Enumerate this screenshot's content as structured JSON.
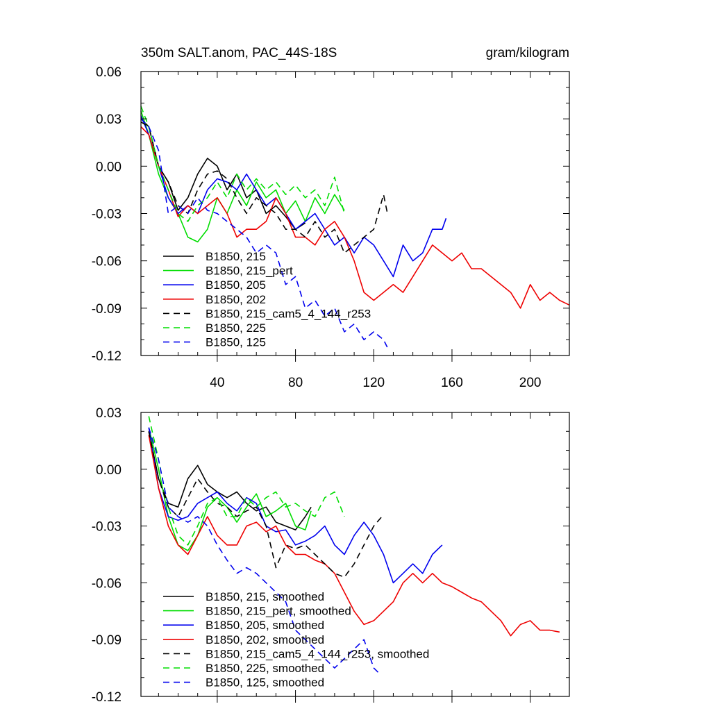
{
  "chart_data": [
    {
      "type": "line",
      "title": "350m SALT.anom, PAC_44S-18S",
      "units": "gram/kilogram",
      "xlabel": "",
      "ylabel": "",
      "xlim": [
        1,
        220
      ],
      "ylim": [
        -0.12,
        0.06
      ],
      "xticks": [
        40,
        80,
        120,
        160,
        200
      ],
      "xtick_labels": [
        "40",
        "80",
        "120",
        "160",
        "200"
      ],
      "yticks": [
        0.06,
        0.03,
        0.0,
        -0.03,
        -0.06,
        -0.09,
        -0.12
      ],
      "ytick_labels": [
        "0.06",
        "0.03",
        "0.00",
        "-0.03",
        "-0.06",
        "-0.09",
        "-0.12"
      ],
      "legend_position": "lower-left",
      "series": [
        {
          "name": "B1850, 215",
          "color": "#000000",
          "dash": "solid",
          "x": [
            1,
            5,
            10,
            15,
            20,
            25,
            30,
            35,
            40,
            45,
            50,
            55,
            60,
            65,
            70,
            75,
            80,
            85
          ],
          "y": [
            0.03,
            0.025,
            0.0,
            -0.01,
            -0.028,
            -0.02,
            -0.005,
            0.005,
            0.0,
            -0.015,
            -0.005,
            -0.02,
            -0.015,
            -0.03,
            -0.025,
            -0.032,
            -0.04,
            -0.036
          ]
        },
        {
          "name": "B1850, 215_pert",
          "color": "#00dd00",
          "dash": "solid",
          "x": [
            1,
            5,
            10,
            15,
            20,
            25,
            30,
            35,
            40,
            45,
            50,
            55,
            60,
            65,
            70,
            75,
            80,
            85,
            90,
            95,
            100,
            105
          ],
          "y": [
            0.035,
            0.02,
            -0.005,
            -0.02,
            -0.03,
            -0.045,
            -0.048,
            -0.04,
            -0.02,
            -0.03,
            -0.015,
            -0.025,
            -0.01,
            -0.02,
            -0.015,
            -0.03,
            -0.022,
            -0.035,
            -0.02,
            -0.03,
            -0.018,
            -0.028
          ]
        },
        {
          "name": "B1850, 205",
          "color": "#0000ee",
          "dash": "solid",
          "x": [
            1,
            5,
            10,
            15,
            20,
            25,
            30,
            35,
            40,
            45,
            50,
            55,
            60,
            65,
            70,
            75,
            80,
            85,
            90,
            95,
            100,
            105,
            110,
            115,
            120,
            125,
            130,
            135,
            140,
            145,
            150,
            155,
            157
          ],
          "y": [
            0.032,
            0.02,
            0.0,
            -0.02,
            -0.03,
            -0.025,
            -0.03,
            -0.015,
            -0.008,
            -0.01,
            -0.015,
            -0.005,
            -0.015,
            -0.025,
            -0.02,
            -0.03,
            -0.04,
            -0.035,
            -0.03,
            -0.04,
            -0.05,
            -0.045,
            -0.055,
            -0.045,
            -0.05,
            -0.06,
            -0.07,
            -0.05,
            -0.06,
            -0.055,
            -0.04,
            -0.04,
            -0.033
          ]
        },
        {
          "name": "B1850, 202",
          "color": "#ee0000",
          "dash": "solid",
          "x": [
            1,
            5,
            10,
            15,
            20,
            25,
            30,
            35,
            40,
            45,
            50,
            55,
            60,
            65,
            70,
            75,
            80,
            85,
            90,
            95,
            100,
            105,
            110,
            115,
            120,
            125,
            130,
            135,
            140,
            145,
            150,
            155,
            160,
            165,
            170,
            175,
            180,
            185,
            190,
            195,
            200,
            205,
            210,
            215,
            220
          ],
          "y": [
            0.025,
            0.02,
            0.0,
            -0.015,
            -0.032,
            -0.025,
            -0.03,
            -0.025,
            -0.02,
            -0.03,
            -0.045,
            -0.04,
            -0.04,
            -0.035,
            -0.02,
            -0.03,
            -0.045,
            -0.045,
            -0.05,
            -0.04,
            -0.035,
            -0.045,
            -0.06,
            -0.08,
            -0.085,
            -0.08,
            -0.075,
            -0.08,
            -0.07,
            -0.06,
            -0.05,
            -0.055,
            -0.06,
            -0.055,
            -0.065,
            -0.065,
            -0.07,
            -0.075,
            -0.08,
            -0.09,
            -0.075,
            -0.085,
            -0.08,
            -0.085,
            -0.088
          ]
        },
        {
          "name": "B1850, 215_cam5_4_144_r253",
          "color": "#000000",
          "dash": "dashed",
          "x": [
            1,
            5,
            10,
            15,
            20,
            25,
            30,
            35,
            40,
            45,
            50,
            55,
            60,
            65,
            70,
            75,
            80,
            85,
            90,
            95,
            100,
            105,
            110,
            115,
            120,
            125,
            127
          ],
          "y": [
            0.028,
            0.025,
            0.0,
            -0.01,
            -0.025,
            -0.03,
            -0.015,
            -0.005,
            -0.003,
            -0.008,
            -0.02,
            -0.03,
            -0.02,
            -0.025,
            -0.03,
            -0.04,
            -0.04,
            -0.045,
            -0.035,
            -0.045,
            -0.04,
            -0.055,
            -0.05,
            -0.045,
            -0.04,
            -0.018,
            -0.03
          ]
        },
        {
          "name": "B1850, 225",
          "color": "#00dd00",
          "dash": "dashed",
          "x": [
            1,
            5,
            10,
            15,
            20,
            25,
            30,
            35,
            40,
            45,
            50,
            55,
            60,
            65,
            70,
            75,
            80,
            85,
            90,
            95,
            100,
            105
          ],
          "y": [
            0.038,
            0.025,
            0.0,
            -0.015,
            -0.03,
            -0.035,
            -0.025,
            -0.02,
            -0.01,
            -0.02,
            -0.005,
            -0.015,
            -0.008,
            -0.015,
            -0.01,
            -0.018,
            -0.012,
            -0.02,
            -0.015,
            -0.025,
            -0.007,
            -0.03
          ]
        },
        {
          "name": "B1850, 125",
          "color": "#0000ee",
          "dash": "dashed",
          "x": [
            1,
            5,
            10,
            15,
            20,
            25,
            30,
            35,
            40,
            45,
            50,
            55,
            60,
            65,
            70,
            75,
            80,
            85,
            90,
            95,
            100,
            105,
            110,
            115,
            120,
            125,
            127
          ],
          "y": [
            0.03,
            0.025,
            0.01,
            -0.03,
            -0.025,
            -0.03,
            -0.02,
            -0.028,
            -0.03,
            -0.035,
            -0.04,
            -0.045,
            -0.055,
            -0.05,
            -0.055,
            -0.075,
            -0.07,
            -0.09,
            -0.085,
            -0.095,
            -0.09,
            -0.105,
            -0.1,
            -0.11,
            -0.105,
            -0.11,
            -0.115
          ]
        }
      ]
    },
    {
      "type": "line",
      "title": "",
      "xlabel": "",
      "ylabel": "",
      "xlim": [
        1,
        220
      ],
      "ylim": [
        -0.12,
        0.03
      ],
      "xticks": [
        40,
        80,
        120,
        160,
        200
      ],
      "xtick_labels": [],
      "yticks": [
        0.03,
        0.0,
        -0.03,
        -0.06,
        -0.09,
        -0.12
      ],
      "ytick_labels": [
        "0.03",
        "0.00",
        "-0.03",
        "-0.06",
        "-0.09",
        "-0.12"
      ],
      "legend_position": "lower-left",
      "series": [
        {
          "name": "B1850, 215, smoothed",
          "color": "#000000",
          "dash": "solid",
          "x": [
            5,
            10,
            15,
            20,
            25,
            30,
            35,
            40,
            45,
            50,
            55,
            60,
            65,
            70,
            75,
            80,
            85,
            88
          ],
          "y": [
            0.02,
            -0.005,
            -0.018,
            -0.02,
            -0.005,
            0.002,
            -0.008,
            -0.012,
            -0.015,
            -0.012,
            -0.018,
            -0.022,
            -0.02,
            -0.028,
            -0.03,
            -0.032,
            -0.025,
            -0.02
          ]
        },
        {
          "name": "B1850, 215_pert, smoothed",
          "color": "#00dd00",
          "dash": "solid",
          "x": [
            5,
            10,
            15,
            20,
            25,
            30,
            35,
            40,
            45,
            50,
            55,
            60,
            65,
            70,
            75,
            80,
            85,
            88
          ],
          "y": [
            0.022,
            0.0,
            -0.025,
            -0.04,
            -0.043,
            -0.035,
            -0.02,
            -0.015,
            -0.02,
            -0.028,
            -0.02,
            -0.013,
            -0.025,
            -0.022,
            -0.018,
            -0.03,
            -0.032,
            -0.022
          ]
        },
        {
          "name": "B1850, 205, smoothed",
          "color": "#0000ee",
          "dash": "solid",
          "x": [
            5,
            10,
            15,
            20,
            25,
            30,
            35,
            40,
            45,
            50,
            55,
            60,
            65,
            70,
            75,
            80,
            85,
            90,
            95,
            100,
            105,
            110,
            115,
            120,
            125,
            130,
            135,
            140,
            145,
            150,
            155
          ],
          "y": [
            0.022,
            -0.01,
            -0.025,
            -0.027,
            -0.025,
            -0.018,
            -0.015,
            -0.012,
            -0.018,
            -0.022,
            -0.015,
            -0.018,
            -0.03,
            -0.033,
            -0.032,
            -0.04,
            -0.038,
            -0.035,
            -0.03,
            -0.04,
            -0.045,
            -0.035,
            -0.028,
            -0.035,
            -0.045,
            -0.06,
            -0.055,
            -0.05,
            -0.055,
            -0.045,
            -0.04
          ]
        },
        {
          "name": "B1850, 202, smoothed",
          "color": "#ee0000",
          "dash": "solid",
          "x": [
            5,
            10,
            15,
            20,
            25,
            30,
            35,
            40,
            45,
            50,
            55,
            60,
            65,
            70,
            75,
            80,
            85,
            90,
            95,
            100,
            105,
            110,
            115,
            120,
            125,
            130,
            135,
            140,
            145,
            150,
            155,
            160,
            165,
            170,
            175,
            180,
            185,
            190,
            195,
            200,
            205,
            210,
            215
          ],
          "y": [
            0.018,
            -0.01,
            -0.03,
            -0.04,
            -0.045,
            -0.035,
            -0.025,
            -0.035,
            -0.04,
            -0.04,
            -0.03,
            -0.028,
            -0.033,
            -0.03,
            -0.04,
            -0.045,
            -0.045,
            -0.048,
            -0.05,
            -0.055,
            -0.065,
            -0.075,
            -0.082,
            -0.08,
            -0.075,
            -0.07,
            -0.06,
            -0.055,
            -0.06,
            -0.055,
            -0.06,
            -0.062,
            -0.065,
            -0.068,
            -0.07,
            -0.075,
            -0.08,
            -0.088,
            -0.082,
            -0.08,
            -0.085,
            -0.085,
            -0.086
          ]
        },
        {
          "name": "B1850, 215_cam5_4_144_r253, smoothed",
          "color": "#000000",
          "dash": "dashed",
          "x": [
            5,
            10,
            15,
            20,
            25,
            30,
            35,
            40,
            45,
            50,
            55,
            60,
            65,
            70,
            75,
            80,
            85,
            90,
            95,
            100,
            105,
            110,
            115,
            120,
            125
          ],
          "y": [
            0.02,
            -0.005,
            -0.02,
            -0.025,
            -0.015,
            -0.005,
            -0.012,
            -0.018,
            -0.02,
            -0.025,
            -0.022,
            -0.02,
            -0.03,
            -0.052,
            -0.04,
            -0.042,
            -0.04,
            -0.045,
            -0.05,
            -0.055,
            -0.057,
            -0.05,
            -0.04,
            -0.03,
            -0.024
          ]
        },
        {
          "name": "B1850, 225, smoothed",
          "color": "#00dd00",
          "dash": "dashed",
          "x": [
            5,
            10,
            15,
            20,
            25,
            30,
            35,
            40,
            45,
            50,
            55,
            60,
            65,
            70,
            75,
            80,
            85,
            90,
            95,
            100,
            105
          ],
          "y": [
            0.028,
            0.005,
            -0.02,
            -0.035,
            -0.04,
            -0.03,
            -0.018,
            -0.015,
            -0.025,
            -0.025,
            -0.015,
            -0.02,
            -0.015,
            -0.012,
            -0.02,
            -0.018,
            -0.022,
            -0.025,
            -0.015,
            -0.012,
            -0.025
          ]
        },
        {
          "name": "B1850, 125, smoothed",
          "color": "#0000ee",
          "dash": "dashed",
          "x": [
            5,
            10,
            15,
            20,
            25,
            30,
            35,
            40,
            45,
            50,
            55,
            60,
            65,
            70,
            75,
            80,
            85,
            90,
            95,
            100,
            105,
            110,
            115,
            120,
            123
          ],
          "y": [
            0.022,
            0.005,
            -0.02,
            -0.025,
            -0.028,
            -0.025,
            -0.03,
            -0.04,
            -0.048,
            -0.055,
            -0.052,
            -0.055,
            -0.06,
            -0.065,
            -0.07,
            -0.085,
            -0.09,
            -0.095,
            -0.1,
            -0.105,
            -0.1,
            -0.095,
            -0.09,
            -0.105,
            -0.108
          ]
        }
      ]
    }
  ]
}
